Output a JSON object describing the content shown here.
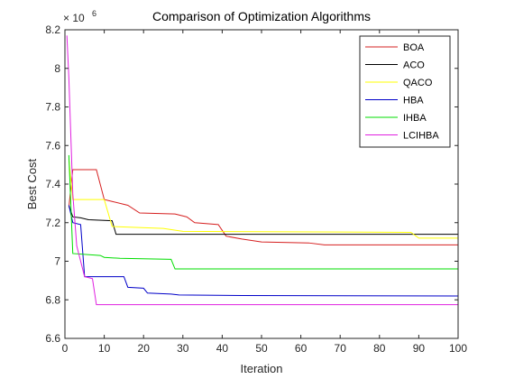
{
  "chart_data": {
    "type": "line",
    "title": "Comparison of Optimization Algorithms",
    "xlabel": "Iteration",
    "ylabel": "Best Cost",
    "xlim": [
      0,
      100
    ],
    "ylim": [
      6.6,
      8.2
    ],
    "y_multiplier": {
      "base": "× 10",
      "exponent": "6"
    },
    "x_ticks": [
      0,
      10,
      20,
      30,
      40,
      50,
      60,
      70,
      80,
      90,
      100
    ],
    "y_ticks": [
      6.6,
      6.8,
      7.0,
      7.2,
      7.4,
      7.6,
      7.8,
      8.0,
      8.2
    ],
    "y_tick_labels": [
      "6.6",
      "6.8",
      "7",
      "7.2",
      "7.4",
      "7.6",
      "7.8",
      "8",
      "8.2"
    ],
    "grid": false,
    "legend_position": "top-right",
    "series": [
      {
        "name": "BOA",
        "color": "#d62020",
        "points": [
          [
            1,
            7.28
          ],
          [
            2,
            7.475
          ],
          [
            8,
            7.475
          ],
          [
            10,
            7.32
          ],
          [
            12,
            7.31
          ],
          [
            16,
            7.29
          ],
          [
            19,
            7.25
          ],
          [
            28,
            7.245
          ],
          [
            31,
            7.23
          ],
          [
            33,
            7.2
          ],
          [
            39,
            7.19
          ],
          [
            41,
            7.13
          ],
          [
            45,
            7.115
          ],
          [
            50,
            7.1
          ],
          [
            62,
            7.095
          ],
          [
            66,
            7.085
          ],
          [
            100,
            7.085
          ]
        ]
      },
      {
        "name": "ACO",
        "color": "#000000",
        "points": [
          [
            1,
            7.29
          ],
          [
            2,
            7.23
          ],
          [
            4,
            7.225
          ],
          [
            6,
            7.215
          ],
          [
            12,
            7.21
          ],
          [
            13,
            7.14
          ],
          [
            100,
            7.14
          ]
        ]
      },
      {
        "name": "QACO",
        "color": "#ffff00",
        "points": [
          [
            1,
            7.53
          ],
          [
            2,
            7.32
          ],
          [
            10,
            7.32
          ],
          [
            12,
            7.18
          ],
          [
            25,
            7.17
          ],
          [
            30,
            7.155
          ],
          [
            88,
            7.15
          ],
          [
            90,
            7.12
          ],
          [
            100,
            7.12
          ]
        ]
      },
      {
        "name": "HBA",
        "color": "#0000c8",
        "points": [
          [
            1,
            7.29
          ],
          [
            2,
            7.2
          ],
          [
            4,
            7.19
          ],
          [
            5,
            6.92
          ],
          [
            15,
            6.92
          ],
          [
            16,
            6.865
          ],
          [
            20,
            6.86
          ],
          [
            21,
            6.835
          ],
          [
            27,
            6.83
          ],
          [
            29,
            6.825
          ],
          [
            45,
            6.822
          ],
          [
            100,
            6.82
          ]
        ]
      },
      {
        "name": "IHBA",
        "color": "#00dd00",
        "points": [
          [
            1,
            7.55
          ],
          [
            2,
            7.04
          ],
          [
            9,
            7.03
          ],
          [
            10,
            7.02
          ],
          [
            14,
            7.015
          ],
          [
            27,
            7.01
          ],
          [
            28,
            6.96
          ],
          [
            100,
            6.96
          ]
        ]
      },
      {
        "name": "LCIHBA",
        "color": "#e020e0",
        "points": [
          [
            0.5,
            8.17
          ],
          [
            1,
            7.95
          ],
          [
            2,
            7.35
          ],
          [
            3,
            7.08
          ],
          [
            5,
            6.92
          ],
          [
            7,
            6.91
          ],
          [
            8,
            6.775
          ],
          [
            100,
            6.775
          ]
        ]
      }
    ]
  }
}
